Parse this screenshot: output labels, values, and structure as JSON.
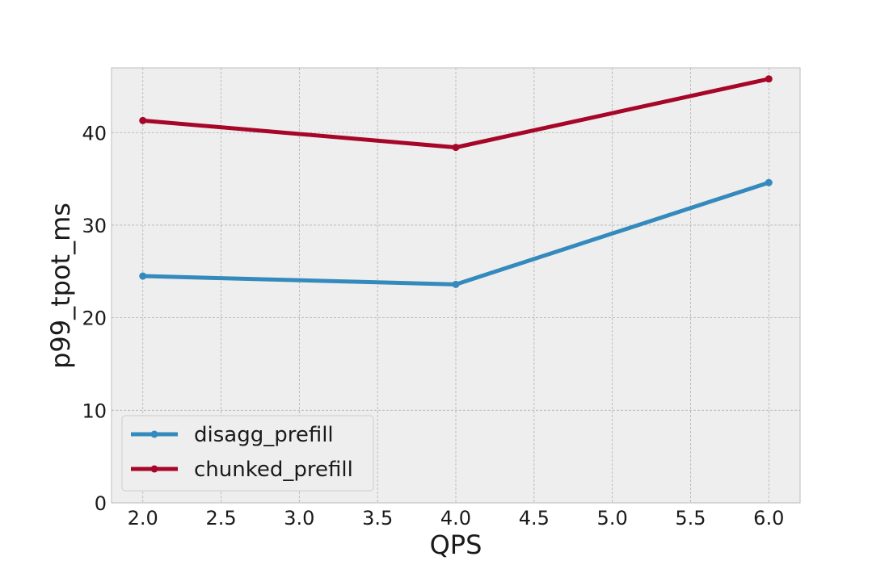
{
  "chart_data": {
    "type": "line",
    "title": "",
    "xlabel": "QPS",
    "ylabel": "p99_tpot_ms",
    "x": [
      2.0,
      4.0,
      6.0
    ],
    "series": [
      {
        "name": "disagg_prefill",
        "values": [
          24.5,
          23.6,
          34.6
        ],
        "color": "#348abd"
      },
      {
        "name": "chunked_prefill",
        "values": [
          41.3,
          38.4,
          45.8
        ],
        "color": "#a60628"
      }
    ],
    "xlim": [
      1.8,
      6.2
    ],
    "ylim": [
      0,
      47
    ],
    "xticks": [
      "2.0",
      "2.5",
      "3.0",
      "3.5",
      "4.0",
      "4.5",
      "5.0",
      "5.5",
      "6.0"
    ],
    "yticks": [
      "0",
      "10",
      "20",
      "30",
      "40"
    ],
    "grid": true,
    "legend_position": "lower-left",
    "background_color": "#eeeeee"
  }
}
